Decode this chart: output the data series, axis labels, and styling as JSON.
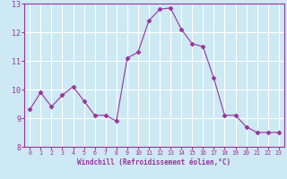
{
  "x": [
    0,
    1,
    2,
    3,
    4,
    5,
    6,
    7,
    8,
    9,
    10,
    11,
    12,
    13,
    14,
    15,
    16,
    17,
    18,
    19,
    20,
    21,
    22,
    23
  ],
  "y": [
    9.3,
    9.9,
    9.4,
    9.8,
    10.1,
    9.6,
    9.1,
    9.1,
    8.9,
    11.1,
    11.3,
    12.4,
    12.8,
    12.85,
    12.1,
    11.6,
    11.5,
    10.4,
    9.1,
    9.1,
    8.7,
    8.5,
    8.5,
    8.5
  ],
  "line_color": "#993399",
  "marker": "D",
  "markersize": 2.5,
  "linewidth": 0.8,
  "xlabel": "Windchill (Refroidissement éolien,°C)",
  "xlim": [
    -0.5,
    23.5
  ],
  "ylim": [
    8,
    13
  ],
  "yticks": [
    8,
    9,
    10,
    11,
    12,
    13
  ],
  "xticks": [
    0,
    1,
    2,
    3,
    4,
    5,
    6,
    7,
    8,
    9,
    10,
    11,
    12,
    13,
    14,
    15,
    16,
    17,
    18,
    19,
    20,
    21,
    22,
    23
  ],
  "bg_color": "#cce9f4",
  "grid_color": "#ffffff",
  "tick_color": "#993399",
  "label_color": "#993399",
  "font": "monospace",
  "xlabel_fontsize": 5.5,
  "xtick_fontsize": 4.8,
  "ytick_fontsize": 6.0
}
